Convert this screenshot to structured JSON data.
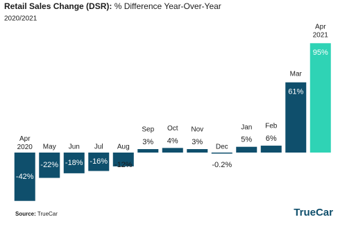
{
  "chart_data": {
    "type": "bar",
    "title": [
      "Retail Sales Change (DSR):",
      "% Difference Year-Over-Year"
    ],
    "subtitle": "2020/2021",
    "categories": [
      "Apr 2020",
      "May",
      "Jun",
      "Jul",
      "Aug",
      "Sep",
      "Oct",
      "Nov",
      "Dec",
      "Jan",
      "Feb",
      "Mar",
      "Apr 2021"
    ],
    "values": [
      -42,
      -22,
      -18,
      -16,
      -12,
      3,
      4,
      3,
      -0.2,
      5,
      6,
      61,
      95
    ],
    "value_labels": [
      "-42%",
      "-22%",
      "-18%",
      "-16%",
      "-12%",
      "3%",
      "4%",
      "3%",
      "-0.2%",
      "5%",
      "6%",
      "61%",
      "95%"
    ],
    "colors": [
      "#0f4f6c",
      "#0f4f6c",
      "#0f4f6c",
      "#0f4f6c",
      "#0f4f6c",
      "#0f4f6c",
      "#0f4f6c",
      "#0f4f6c",
      "#0f4f6c",
      "#0f4f6c",
      "#0f4f6c",
      "#0f4f6c",
      "#2fd3b5"
    ],
    "source_label": "Source:",
    "source": "TrueCar",
    "logo": "TrueCar"
  }
}
